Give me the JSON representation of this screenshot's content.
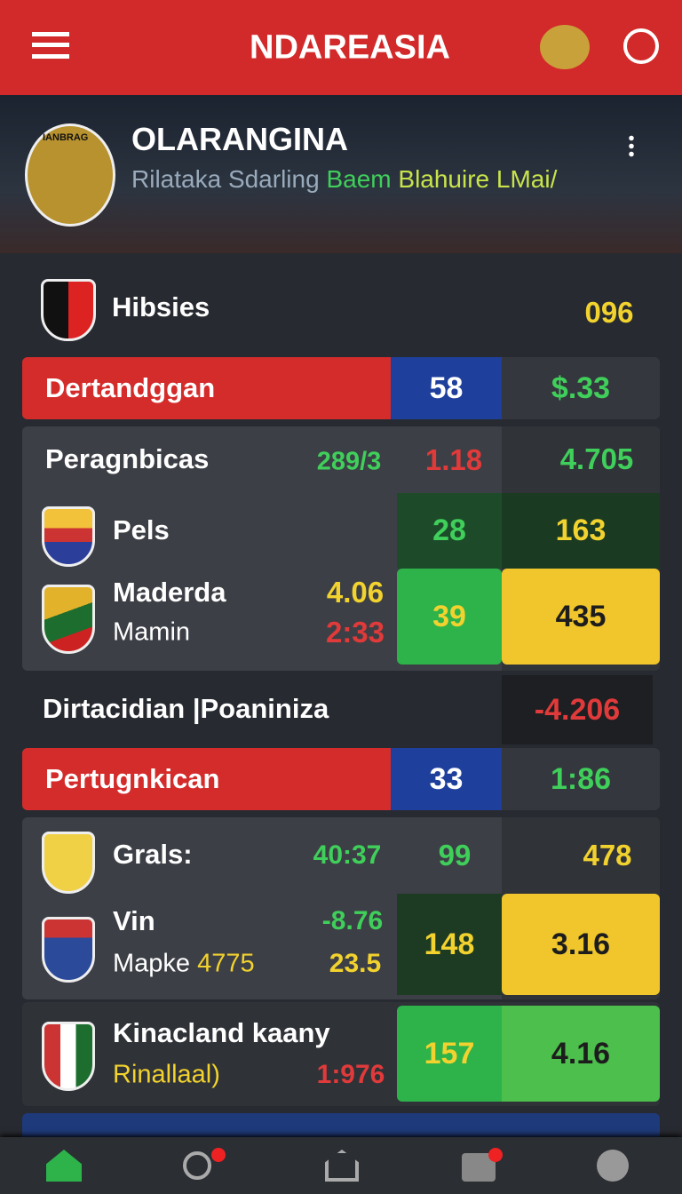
{
  "header": {
    "title": "NDAREASIA"
  },
  "banner": {
    "crest": "IANBRAG",
    "title": "OLARANGINA",
    "subtitle": [
      "Rilataka Sdarling",
      "Baem",
      "Blahuire LMai/"
    ]
  },
  "summary": {
    "label": "Hibsies",
    "value": "096"
  },
  "group1": {
    "bar": {
      "label": "Dertandggan",
      "value": "58",
      "odds": "$.33"
    },
    "head": {
      "label": "Peragnbicas",
      "a": "289/3",
      "b": "1.18",
      "c": "4.705"
    },
    "row1": {
      "label": "Pels",
      "a": "28",
      "b": "163"
    },
    "row2": {
      "label": "Maderda",
      "sub": "Mamin",
      "x": "4.06",
      "y": "2:33",
      "a": "39",
      "b": "435"
    }
  },
  "divider": {
    "label": "Dirtacidian |Poaniniza",
    "value": "-4.206"
  },
  "group2": {
    "bar": {
      "label": "Pertugnkican",
      "value": "33",
      "odds": "1:86"
    },
    "head": {
      "label": "Grals:",
      "a": "40:37",
      "b": "99",
      "c": "478"
    },
    "row1": {
      "label": "Vin",
      "sub": "Mapke",
      "extra": "4775",
      "x": "-8.76",
      "y": "23.5",
      "a": "148",
      "b": "3.16"
    },
    "row2": {
      "label": "Kinacland kaany",
      "sub": "Rinallaal)",
      "y": "1:976",
      "a": "157",
      "b": "4.16"
    }
  }
}
